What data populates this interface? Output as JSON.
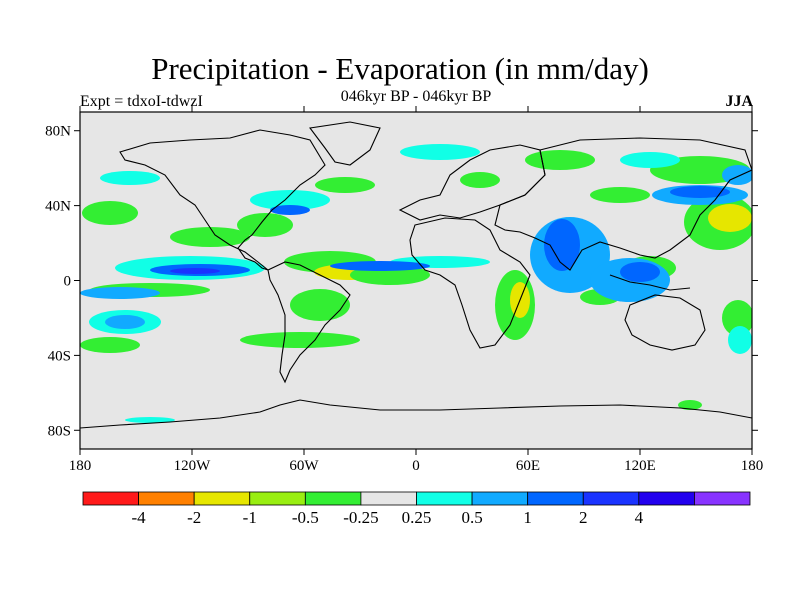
{
  "title": "Precipitation - Evaporation (in mm/day)",
  "subtitle": "046kyr BP - 046kyr BP",
  "experiment_label": "Expt = tdxoI-tdwzI",
  "season_label": "JJA",
  "colors": {
    "background_land_ocean": "#e6e6e6",
    "coastline": "#000000"
  },
  "map": {
    "lon_range": [
      -180,
      180
    ],
    "lat_range": [
      -90,
      90
    ],
    "lon_ticks": [
      {
        "value": -180,
        "label": "180"
      },
      {
        "value": -120,
        "label": "120W"
      },
      {
        "value": -60,
        "label": "60W"
      },
      {
        "value": 0,
        "label": "0"
      },
      {
        "value": 60,
        "label": "60E"
      },
      {
        "value": 120,
        "label": "120E"
      },
      {
        "value": 180,
        "label": "180"
      }
    ],
    "lat_ticks": [
      {
        "value": 80,
        "label": "80N"
      },
      {
        "value": 40,
        "label": "40N"
      },
      {
        "value": 0,
        "label": "0"
      },
      {
        "value": -40,
        "label": "40S"
      },
      {
        "value": -80,
        "label": "80S"
      }
    ]
  },
  "colorbar": {
    "colors": [
      "#ff1a1a",
      "#ff8000",
      "#e6e600",
      "#99ee11",
      "#33ee33",
      "#e6e6e6",
      "#11ffe6",
      "#11aaff",
      "#0066ff",
      "#1a33ff",
      "#2200ee",
      "#8833ff"
    ],
    "labels": [
      "-4",
      "-2",
      "-1",
      "-0.5",
      "-0.25",
      "0.25",
      "0.5",
      "1",
      "2",
      "4"
    ]
  }
}
